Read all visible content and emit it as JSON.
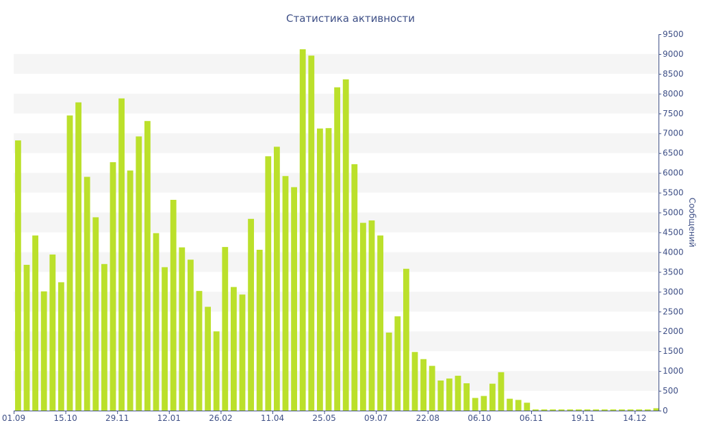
{
  "chart_data": {
    "type": "bar",
    "title": "Статистика активности",
    "ylabel": "Сообщений",
    "xlabel": "",
    "ylim": [
      0,
      9500
    ],
    "y_ticks": [
      0,
      500,
      1000,
      1500,
      2000,
      2500,
      3000,
      3500,
      4000,
      4500,
      5000,
      5500,
      6000,
      6500,
      7000,
      7500,
      8000,
      8500,
      9000,
      9500
    ],
    "x_tick_labels": [
      {
        "label": "01.09",
        "index": 0
      },
      {
        "label": "15.10",
        "index": 6
      },
      {
        "label": "29.11",
        "index": 12
      },
      {
        "label": "12.01",
        "index": 18
      },
      {
        "label": "26.02",
        "index": 24
      },
      {
        "label": "11.04",
        "index": 30
      },
      {
        "label": "25.05",
        "index": 36
      },
      {
        "label": "09.07",
        "index": 42
      },
      {
        "label": "22.08",
        "index": 48
      },
      {
        "label": "06.10",
        "index": 54
      },
      {
        "label": "06.11",
        "index": 60
      },
      {
        "label": "19.11",
        "index": 66
      },
      {
        "label": "14.12",
        "index": 72
      }
    ],
    "values": [
      6820,
      3680,
      4420,
      3010,
      3940,
      3240,
      7450,
      7780,
      5900,
      4880,
      3700,
      6270,
      7880,
      6060,
      6920,
      7310,
      4480,
      3620,
      5320,
      4120,
      3810,
      3020,
      2620,
      2000,
      4130,
      3120,
      2930,
      4840,
      4060,
      6420,
      6660,
      5920,
      5640,
      9120,
      8960,
      7120,
      7130,
      8160,
      8360,
      6220,
      4740,
      4800,
      4420,
      1970,
      2380,
      3580,
      1480,
      1300,
      1130,
      760,
      810,
      880,
      690,
      320,
      370,
      680,
      970,
      300,
      270,
      200,
      30,
      30,
      30,
      30,
      30,
      30,
      30,
      30,
      30,
      30,
      30,
      30,
      30,
      30,
      60
    ],
    "bar_color": "#bbe02b",
    "band_color": "#f5f5f5",
    "axis_color": "#3e4f86",
    "grid": true,
    "legend": "none"
  }
}
